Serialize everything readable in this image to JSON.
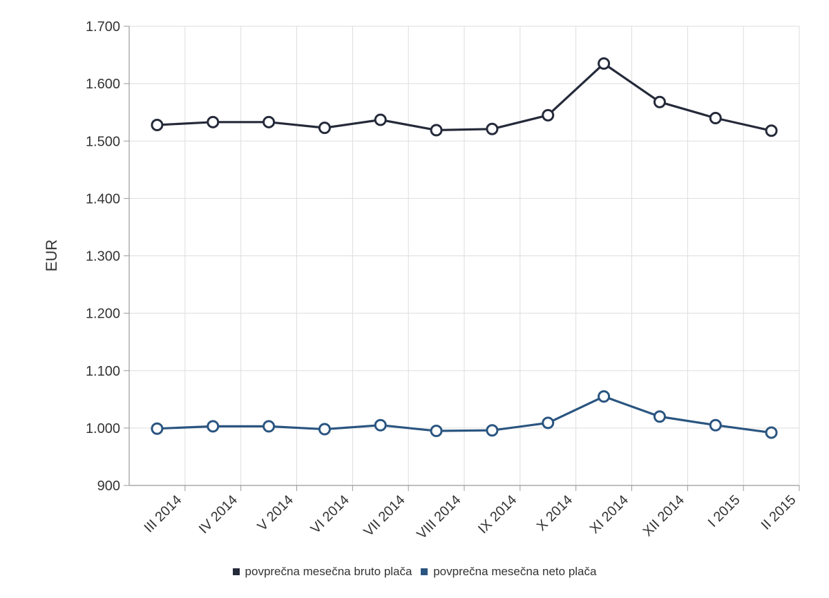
{
  "chart_data": {
    "type": "line",
    "title": "",
    "ylabel": "EUR",
    "xlabel": "",
    "ylim": [
      900,
      1700
    ],
    "yticks": [
      900,
      1000,
      1100,
      1200,
      1300,
      1400,
      1500,
      1600,
      1700
    ],
    "ytick_labels": [
      "900",
      "1.000",
      "1.100",
      "1.200",
      "1.300",
      "1.400",
      "1.500",
      "1.600",
      "1.700"
    ],
    "categories": [
      "III 2014",
      "IV 2014",
      "V 2014",
      "VI 2014",
      "VII 2014",
      "VIII 2014",
      "IX 2014",
      "X 2014",
      "XI 2014",
      "XII 2014",
      "I 2015",
      "II 2015"
    ],
    "grid": true,
    "legend_position": "bottom",
    "series": [
      {
        "name": "povprečna mesečna bruto plača",
        "color": "#252a3a",
        "values": [
          1528,
          1533,
          1533,
          1523,
          1537,
          1519,
          1521,
          1545,
          1635,
          1568,
          1540,
          1518
        ]
      },
      {
        "name": "povprečna mesečna neto plača",
        "color": "#2a5580",
        "values": [
          999,
          1003,
          1003,
          998,
          1005,
          995,
          996,
          1009,
          1055,
          1020,
          1005,
          992
        ]
      }
    ]
  }
}
